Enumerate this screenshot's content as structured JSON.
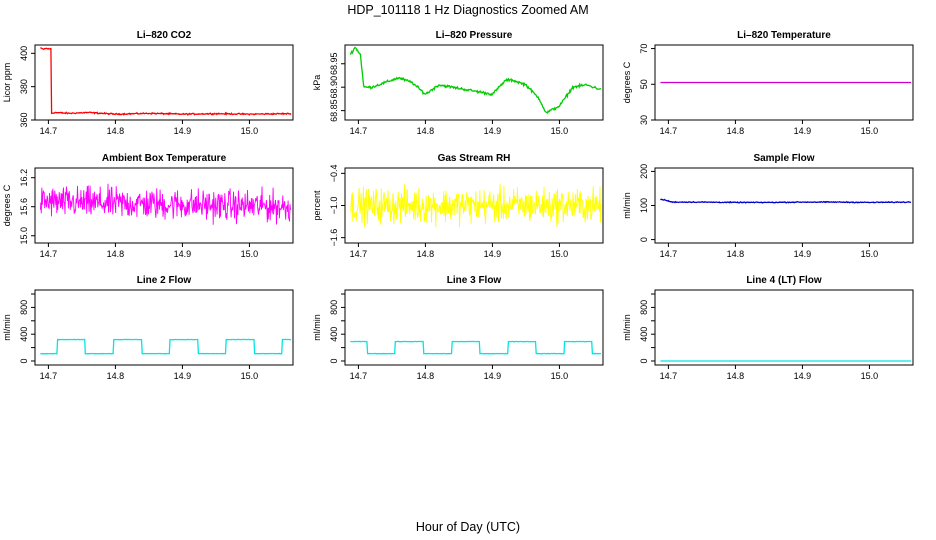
{
  "title": "HDP_101118  1 Hz Diagnostics Zoomed AM",
  "xlabel": "Hour of Day (UTC)",
  "chart_data": [
    {
      "type": "line",
      "title": "Li–820 CO2",
      "ylabel": "Licor ppm",
      "color": "#ff0000",
      "xlim": [
        14.68,
        15.065
      ],
      "ylim": [
        360,
        405
      ],
      "xticks": [
        14.7,
        14.8,
        14.9,
        15.0
      ],
      "xtick_labels": [
        "14.7",
        "14.8",
        "14.9",
        "15.0"
      ],
      "yticks": [
        360,
        380,
        400
      ],
      "ytick_labels": [
        "360",
        "380",
        "400"
      ],
      "series": [
        {
          "segments": [
            {
              "kind": "step",
              "x": [
                14.688,
                14.693,
                14.697,
                14.701,
                14.704,
                14.7045,
                14.71,
                14.73,
                14.76,
                14.8,
                14.85,
                14.9,
                14.95,
                15.0,
                15.062
              ],
              "y": [
                403,
                402.5,
                403,
                402.5,
                403,
                364,
                364.5,
                364,
                364.5,
                363.5,
                364,
                363.5,
                363.8,
                363.5,
                363.8
              ],
              "noise": 0.6
            }
          ]
        }
      ]
    },
    {
      "type": "line",
      "title": "Li–820 Pressure",
      "ylabel": "kPa",
      "color": "#00cc00",
      "xlim": [
        14.68,
        15.065
      ],
      "ylim": [
        68.83,
        68.99
      ],
      "xticks": [
        14.7,
        14.8,
        14.9,
        15.0
      ],
      "xtick_labels": [
        "14.7",
        "14.8",
        "14.9",
        "15.0"
      ],
      "yticks": [
        68.85,
        68.9,
        68.95
      ],
      "ytick_labels": [
        "68.85",
        "68.90",
        "68.95"
      ],
      "series": [
        {
          "segments": [
            {
              "kind": "step",
              "x": [
                14.688,
                14.695,
                14.703,
                14.708,
                14.72,
                14.74,
                14.76,
                14.78,
                14.8,
                14.82,
                14.84,
                14.86,
                14.88,
                14.9,
                14.92,
                14.93,
                14.95,
                14.97,
                14.98,
                15.0,
                15.02,
                15.04,
                15.062
              ],
              "y": [
                68.97,
                68.985,
                68.97,
                68.9,
                68.9,
                68.91,
                68.92,
                68.91,
                68.885,
                68.905,
                68.9,
                68.895,
                68.89,
                68.885,
                68.915,
                68.915,
                68.905,
                68.875,
                68.845,
                68.86,
                68.9,
                68.905,
                68.895
              ],
              "noise": 0.004
            }
          ]
        }
      ]
    },
    {
      "type": "line",
      "title": "Li–820 Temperature",
      "ylabel": "degrees C",
      "color": "#cc00cc",
      "xlim": [
        14.68,
        15.065
      ],
      "ylim": [
        30,
        72
      ],
      "xticks": [
        14.7,
        14.8,
        14.9,
        15.0
      ],
      "xtick_labels": [
        "14.7",
        "14.8",
        "14.9",
        "15.0"
      ],
      "yticks": [
        30,
        50,
        70
      ],
      "ytick_labels": [
        "30",
        "50",
        "70"
      ],
      "series": [
        {
          "segments": [
            {
              "kind": "line",
              "x": [
                14.688,
                15.062
              ],
              "y": [
                51,
                51
              ],
              "noise": 0
            }
          ]
        }
      ]
    },
    {
      "type": "line",
      "title": "Ambient Box Temperature",
      "ylabel": "degrees C",
      "color": "#ff00ff",
      "xlim": [
        14.68,
        15.065
      ],
      "ylim": [
        14.85,
        16.4
      ],
      "xticks": [
        14.7,
        14.8,
        14.9,
        15.0
      ],
      "xtick_labels": [
        "14.7",
        "14.8",
        "14.9",
        "15.0"
      ],
      "yticks": [
        15.0,
        15.6,
        16.2
      ],
      "ytick_labels": [
        "15.0",
        "15.6",
        "16.2"
      ],
      "series": [
        {
          "segments": [
            {
              "kind": "noise",
              "x": [
                14.688,
                15.062
              ],
              "y": [
                15.7,
                15.6
              ],
              "noise": 0.3
            }
          ]
        }
      ]
    },
    {
      "type": "line",
      "title": "Gas Stream RH",
      "ylabel": "percent",
      "color": "#ffff00",
      "xlim": [
        14.68,
        15.065
      ],
      "ylim": [
        -1.7,
        -0.3
      ],
      "xticks": [
        14.7,
        14.8,
        14.9,
        15.0
      ],
      "xtick_labels": [
        "14.7",
        "14.8",
        "14.9",
        "15.0"
      ],
      "yticks": [
        -1.6,
        -1.0,
        -0.4
      ],
      "ytick_labels": [
        "−1.6",
        "−1.0",
        "−0.4"
      ],
      "series": [
        {
          "segments": [
            {
              "kind": "noise",
              "x": [
                14.688,
                15.062
              ],
              "y": [
                -1.0,
                -1.0
              ],
              "noise": 0.3
            }
          ]
        }
      ]
    },
    {
      "type": "line",
      "title": "Sample Flow",
      "ylabel": "ml/min",
      "color": "#0000cc",
      "xlim": [
        14.68,
        15.065
      ],
      "ylim": [
        -10,
        210
      ],
      "xticks": [
        14.7,
        14.8,
        14.9,
        15.0
      ],
      "xtick_labels": [
        "14.7",
        "14.8",
        "14.9",
        "15.0"
      ],
      "yticks": [
        0,
        100,
        200
      ],
      "ytick_labels": [
        "0",
        "100",
        "200"
      ],
      "series": [
        {
          "segments": [
            {
              "kind": "step",
              "x": [
                14.688,
                14.695,
                14.705,
                14.75,
                14.8,
                14.85,
                14.9,
                14.95,
                15.0,
                15.062
              ],
              "y": [
                118,
                116,
                110,
                110,
                109,
                109,
                110,
                110,
                109,
                110
              ],
              "noise": 2
            }
          ]
        }
      ]
    },
    {
      "type": "line",
      "title": "Line 2 Flow",
      "ylabel": "ml/min",
      "color": "#00e5e5",
      "xlim": [
        14.68,
        15.065
      ],
      "ylim": [
        -60,
        1060
      ],
      "xticks": [
        14.7,
        14.8,
        14.9,
        15.0
      ],
      "xtick_labels": [
        "14.7",
        "14.8",
        "14.9",
        "15.0"
      ],
      "yticks": [
        0,
        200,
        400,
        600,
        800,
        1000
      ],
      "ytick_labels": [
        "0",
        "",
        "400",
        "",
        "800",
        ""
      ],
      "series": [
        {
          "segments": [
            {
              "kind": "square",
              "x": [
                14.688,
                15.062
              ],
              "y": [
                110,
                320
              ],
              "period": 0.084,
              "phase": 0.017,
              "noise": 4
            }
          ]
        }
      ]
    },
    {
      "type": "line",
      "title": "Line 3 Flow",
      "ylabel": "ml/min",
      "color": "#00e5e5",
      "xlim": [
        14.68,
        15.065
      ],
      "ylim": [
        -60,
        1060
      ],
      "xticks": [
        14.7,
        14.8,
        14.9,
        15.0
      ],
      "xtick_labels": [
        "14.7",
        "14.8",
        "14.9",
        "15.0"
      ],
      "yticks": [
        0,
        200,
        400,
        600,
        800,
        1000
      ],
      "ytick_labels": [
        "0",
        "",
        "400",
        "",
        "800",
        ""
      ],
      "series": [
        {
          "segments": [
            {
              "kind": "square",
              "x": [
                14.688,
                15.062
              ],
              "y": [
                290,
                110
              ],
              "period": 0.084,
              "phase": 0.017,
              "noise": 4
            }
          ]
        }
      ]
    },
    {
      "type": "line",
      "title": "Line 4 (LT) Flow",
      "ylabel": "ml/min",
      "color": "#00e5e5",
      "xlim": [
        14.68,
        15.065
      ],
      "ylim": [
        -60,
        1060
      ],
      "xticks": [
        14.7,
        14.8,
        14.9,
        15.0
      ],
      "xtick_labels": [
        "14.7",
        "14.8",
        "14.9",
        "15.0"
      ],
      "yticks": [
        0,
        200,
        400,
        600,
        800,
        1000
      ],
      "ytick_labels": [
        "0",
        "",
        "400",
        "",
        "800",
        ""
      ],
      "series": [
        {
          "segments": [
            {
              "kind": "line",
              "x": [
                14.688,
                15.062
              ],
              "y": [
                0,
                0
              ],
              "noise": 0
            }
          ]
        }
      ]
    }
  ]
}
